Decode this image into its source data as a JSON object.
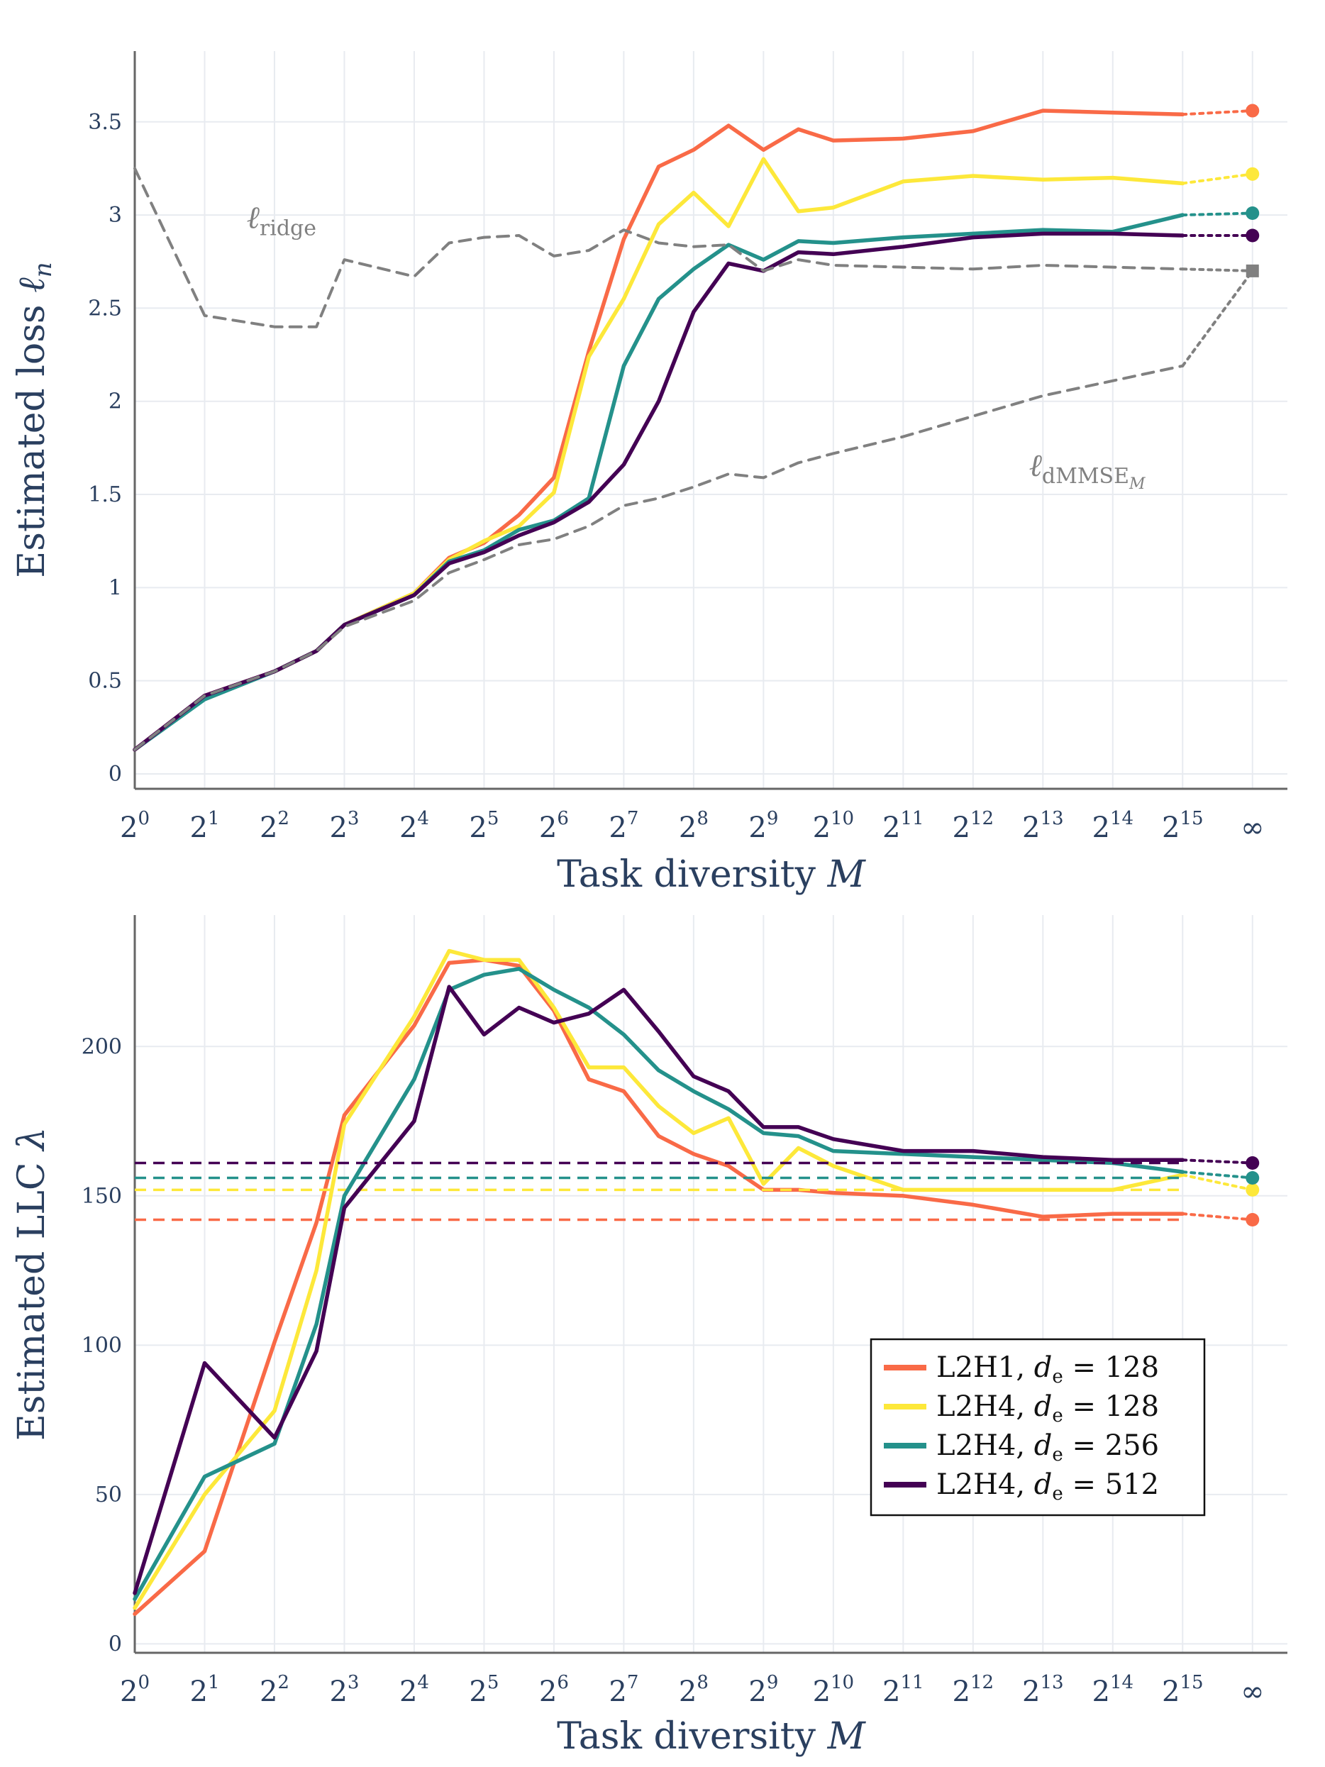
{
  "chart_data": [
    {
      "type": "line",
      "xlabel": "Task diversity",
      "xlabel_var": "M",
      "ylabel": "Estimated loss",
      "ylabel_var": "ℓ",
      "ylabel_sub": "n",
      "xticks": [
        {
          "base": "2",
          "exp": "0"
        },
        {
          "base": "2",
          "exp": "1"
        },
        {
          "base": "2",
          "exp": "2"
        },
        {
          "base": "2",
          "exp": "3"
        },
        {
          "base": "2",
          "exp": "4"
        },
        {
          "base": "2",
          "exp": "5"
        },
        {
          "base": "2",
          "exp": "6"
        },
        {
          "base": "2",
          "exp": "7"
        },
        {
          "base": "2",
          "exp": "8"
        },
        {
          "base": "2",
          "exp": "9"
        },
        {
          "base": "2",
          "exp": "10"
        },
        {
          "base": "2",
          "exp": "11"
        },
        {
          "base": "2",
          "exp": "12"
        },
        {
          "base": "2",
          "exp": "13"
        },
        {
          "base": "2",
          "exp": "14"
        },
        {
          "base": "2",
          "exp": "15"
        },
        {
          "base": "∞",
          "exp": ""
        }
      ],
      "xlim": [
        0,
        16.5
      ],
      "ylim": [
        -0.08,
        3.88
      ],
      "yticks": [
        0,
        0.5,
        1,
        1.5,
        2,
        2.5,
        3,
        3.5
      ],
      "ytick_labels": [
        "0",
        "0.5",
        "1",
        "1.5",
        "2",
        "2.5",
        "3",
        "3.5"
      ],
      "grid": true,
      "series": [
        {
          "name": "L2H1, d_e = 128",
          "color": "#f96a47",
          "style": "solid",
          "x": [
            0,
            1,
            2,
            2.6,
            3,
            4,
            4.5,
            5,
            5.5,
            6,
            6.5,
            7,
            7.5,
            8,
            8.5,
            9,
            9.5,
            10,
            11,
            12,
            13,
            14,
            15
          ],
          "y": [
            0.13,
            0.42,
            0.55,
            0.66,
            0.8,
            0.97,
            1.16,
            1.24,
            1.39,
            1.59,
            2.27,
            2.87,
            3.26,
            3.35,
            3.48,
            3.35,
            3.46,
            3.4,
            3.41,
            3.45,
            3.56,
            3.55,
            3.54
          ],
          "limit_x": 16,
          "limit_y": 3.56
        },
        {
          "name": "L2H4, d_e = 128",
          "color": "#fde83a",
          "style": "solid",
          "x": [
            0,
            1,
            2,
            2.6,
            3,
            4,
            4.5,
            5,
            5.5,
            6,
            6.5,
            7,
            7.5,
            8,
            8.5,
            9,
            9.5,
            10,
            11,
            12,
            13,
            14,
            15
          ],
          "y": [
            0.13,
            0.41,
            0.55,
            0.66,
            0.8,
            0.97,
            1.15,
            1.25,
            1.33,
            1.51,
            2.24,
            2.55,
            2.95,
            3.12,
            2.94,
            3.3,
            3.02,
            3.04,
            3.18,
            3.21,
            3.19,
            3.2,
            3.17
          ],
          "limit_x": 16,
          "limit_y": 3.22
        },
        {
          "name": "L2H4, d_e = 256",
          "color": "#24918b",
          "style": "solid",
          "x": [
            0,
            1,
            2,
            2.6,
            3,
            4,
            4.5,
            5,
            5.5,
            6,
            6.5,
            7,
            7.5,
            8,
            8.5,
            9,
            9.5,
            10,
            11,
            12,
            13,
            14,
            15
          ],
          "y": [
            0.13,
            0.4,
            0.55,
            0.66,
            0.8,
            0.96,
            1.14,
            1.2,
            1.31,
            1.36,
            1.48,
            2.19,
            2.55,
            2.71,
            2.84,
            2.76,
            2.86,
            2.85,
            2.88,
            2.9,
            2.92,
            2.91,
            3.0
          ],
          "limit_x": 16,
          "limit_y": 3.01
        },
        {
          "name": "L2H4, d_e = 512",
          "color": "#440154",
          "style": "solid",
          "x": [
            0,
            1,
            2,
            2.6,
            3,
            4,
            4.5,
            5,
            5.5,
            6,
            6.5,
            7,
            7.5,
            8,
            8.5,
            9,
            9.5,
            10,
            11,
            12,
            13,
            14,
            15
          ],
          "y": [
            0.13,
            0.42,
            0.55,
            0.66,
            0.8,
            0.96,
            1.13,
            1.19,
            1.28,
            1.35,
            1.46,
            1.66,
            2.0,
            2.48,
            2.74,
            2.7,
            2.8,
            2.79,
            2.83,
            2.88,
            2.9,
            2.9,
            2.89
          ],
          "limit_x": 16,
          "limit_y": 2.89
        },
        {
          "name": "ℓ_ridge",
          "color": "#808080",
          "style": "dashed",
          "x": [
            0,
            1,
            2,
            2.6,
            3,
            4,
            4.5,
            5,
            5.5,
            6,
            6.5,
            7,
            7.5,
            8,
            8.5,
            9,
            9.5,
            10,
            11,
            12,
            13,
            14,
            15
          ],
          "y": [
            3.25,
            2.46,
            2.4,
            2.4,
            2.76,
            2.67,
            2.85,
            2.88,
            2.89,
            2.78,
            2.81,
            2.92,
            2.85,
            2.83,
            2.84,
            2.7,
            2.76,
            2.73,
            2.72,
            2.71,
            2.73,
            2.72,
            2.71
          ],
          "limit_x": 16,
          "limit_y": 2.7
        },
        {
          "name": "ℓ_dMMSE_M",
          "color": "#808080",
          "style": "dashed",
          "x": [
            0,
            1,
            2,
            2.6,
            3,
            4,
            4.5,
            5,
            5.5,
            6,
            6.5,
            7,
            7.5,
            8,
            8.5,
            9,
            9.5,
            10,
            11,
            12,
            13,
            14,
            15
          ],
          "y": [
            0.13,
            0.42,
            0.55,
            0.66,
            0.79,
            0.93,
            1.08,
            1.15,
            1.23,
            1.26,
            1.33,
            1.44,
            1.48,
            1.54,
            1.61,
            1.59,
            1.67,
            1.72,
            1.81,
            1.92,
            2.03,
            2.11,
            2.19
          ],
          "limit_x": 16,
          "limit_y": 2.7
        }
      ],
      "annotations": [
        {
          "name": "ridge-label",
          "base": "ℓ",
          "sub": "ridge",
          "subsub": "",
          "x": 1.6,
          "y": 2.93
        },
        {
          "name": "dmmse-label",
          "base": "ℓ",
          "sub": "dMMSE",
          "subsub": "M",
          "x": 12.8,
          "y": 1.6
        }
      ]
    },
    {
      "type": "line",
      "xlabel": "Task diversity",
      "xlabel_var": "M",
      "ylabel": "Estimated LLC",
      "ylabel_var": "λ",
      "ylabel_sub": "",
      "xticks": [
        {
          "base": "2",
          "exp": "0"
        },
        {
          "base": "2",
          "exp": "1"
        },
        {
          "base": "2",
          "exp": "2"
        },
        {
          "base": "2",
          "exp": "3"
        },
        {
          "base": "2",
          "exp": "4"
        },
        {
          "base": "2",
          "exp": "5"
        },
        {
          "base": "2",
          "exp": "6"
        },
        {
          "base": "2",
          "exp": "7"
        },
        {
          "base": "2",
          "exp": "8"
        },
        {
          "base": "2",
          "exp": "9"
        },
        {
          "base": "2",
          "exp": "10"
        },
        {
          "base": "2",
          "exp": "11"
        },
        {
          "base": "2",
          "exp": "12"
        },
        {
          "base": "2",
          "exp": "13"
        },
        {
          "base": "2",
          "exp": "14"
        },
        {
          "base": "2",
          "exp": "15"
        },
        {
          "base": "∞",
          "exp": ""
        }
      ],
      "xlim": [
        0,
        16.5
      ],
      "ylim": [
        -3,
        244
      ],
      "yticks": [
        0,
        50,
        100,
        150,
        200
      ],
      "ytick_labels": [
        "0",
        "50",
        "100",
        "150",
        "200"
      ],
      "grid": true,
      "series": [
        {
          "name": "L2H1, d_e = 128",
          "color": "#f96a47",
          "style": "solid",
          "x": [
            0,
            1,
            2,
            2.6,
            3,
            4,
            4.5,
            5,
            5.5,
            6,
            6.5,
            7,
            7.5,
            8,
            8.5,
            9,
            9.5,
            10,
            11,
            12,
            13,
            14,
            15
          ],
          "y": [
            10,
            31,
            101,
            141,
            177,
            207,
            228,
            229,
            227,
            212,
            189,
            185,
            170,
            164,
            160,
            152,
            152,
            151,
            150,
            147,
            143,
            144,
            144
          ],
          "hline": 142,
          "limit_x": 16,
          "limit_y": 142
        },
        {
          "name": "L2H4, d_e = 128",
          "color": "#fde83a",
          "style": "solid",
          "x": [
            0,
            1,
            2,
            2.6,
            3,
            4,
            4.5,
            5,
            5.5,
            6,
            6.5,
            7,
            7.5,
            8,
            8.5,
            9,
            9.5,
            10,
            11,
            12,
            13,
            14,
            15
          ],
          "y": [
            12,
            50,
            78,
            125,
            174,
            210,
            232,
            229,
            229,
            213,
            193,
            193,
            180,
            171,
            176,
            154,
            166,
            160,
            152,
            152,
            152,
            152,
            157
          ],
          "hline": 152,
          "limit_x": 16,
          "limit_y": 152
        },
        {
          "name": "L2H4, d_e = 256",
          "color": "#24918b",
          "style": "solid",
          "x": [
            0,
            1,
            2,
            2.6,
            3,
            4,
            4.5,
            5,
            5.5,
            6,
            6.5,
            7,
            7.5,
            8,
            8.5,
            9,
            9.5,
            10,
            11,
            12,
            13,
            14,
            15
          ],
          "y": [
            15,
            56,
            67,
            107,
            150,
            189,
            219,
            224,
            226,
            219,
            213,
            204,
            192,
            185,
            179,
            171,
            170,
            165,
            164,
            163,
            162,
            161,
            158
          ],
          "hline": 156,
          "limit_x": 16,
          "limit_y": 156
        },
        {
          "name": "L2H4, d_e = 512",
          "color": "#440154",
          "style": "solid",
          "x": [
            0,
            1,
            2,
            2.6,
            3,
            4,
            4.5,
            5,
            5.5,
            6,
            6.5,
            7,
            7.5,
            8,
            8.5,
            9,
            9.5,
            10,
            11,
            12,
            13,
            14,
            15
          ],
          "y": [
            17,
            94,
            69,
            98,
            146,
            175,
            220,
            204,
            213,
            208,
            211,
            219,
            205,
            190,
            185,
            173,
            173,
            169,
            165,
            165,
            163,
            162,
            162
          ],
          "hline": 161,
          "limit_x": 16,
          "limit_y": 161
        }
      ],
      "legend": {
        "position": "lower-right",
        "items": [
          {
            "name": "L2H1",
            "var": "d",
            "sub": "e",
            "value": "128",
            "color": "#f96a47"
          },
          {
            "name": "L2H4",
            "var": "d",
            "sub": "e",
            "value": "128",
            "color": "#fde83a"
          },
          {
            "name": "L2H4",
            "var": "d",
            "sub": "e",
            "value": "256",
            "color": "#24918b"
          },
          {
            "name": "L2H4",
            "var": "d",
            "sub": "e",
            "value": "512",
            "color": "#440154"
          }
        ]
      }
    }
  ]
}
